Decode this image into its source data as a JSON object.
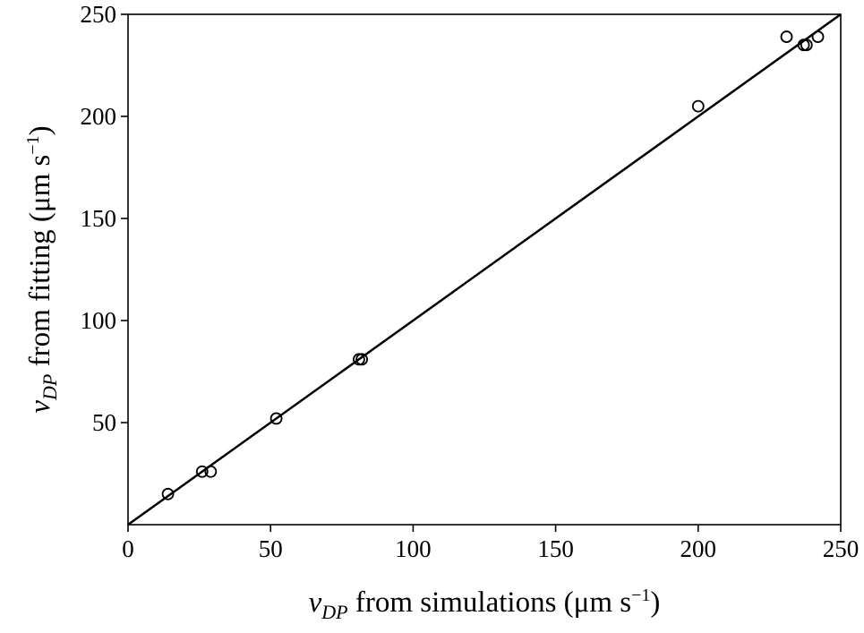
{
  "chart_data": {
    "type": "scatter",
    "title": "",
    "xlabel": {
      "var": "v",
      "sub": "DP",
      "text": " from simulations (μm s",
      "sup": "−1",
      "close": ")"
    },
    "ylabel": {
      "var": "v",
      "sub": "DP",
      "text": " from fitting (μm s",
      "sup": "−1",
      "close": ")"
    },
    "xlim": [
      0,
      250
    ],
    "ylim": [
      0,
      250
    ],
    "xticks": [
      0,
      50,
      100,
      150,
      200,
      250
    ],
    "yticks": [
      50,
      100,
      150,
      200,
      250
    ],
    "xtick_labels": [
      "0",
      "50",
      "100",
      "150",
      "200",
      "250"
    ],
    "ytick_labels": [
      "50",
      "100",
      "150",
      "200",
      "250"
    ],
    "grid": false,
    "series": [
      {
        "marker": "open-circle",
        "color": "#000000",
        "x": [
          14,
          26,
          29,
          52,
          81,
          82,
          200,
          231,
          237,
          238,
          242
        ],
        "y": [
          15,
          26,
          26,
          52,
          81,
          81,
          205,
          239,
          235,
          235,
          239
        ]
      }
    ],
    "reference_line": {
      "x": [
        0,
        250
      ],
      "y": [
        0,
        250
      ],
      "color": "#000000"
    }
  }
}
